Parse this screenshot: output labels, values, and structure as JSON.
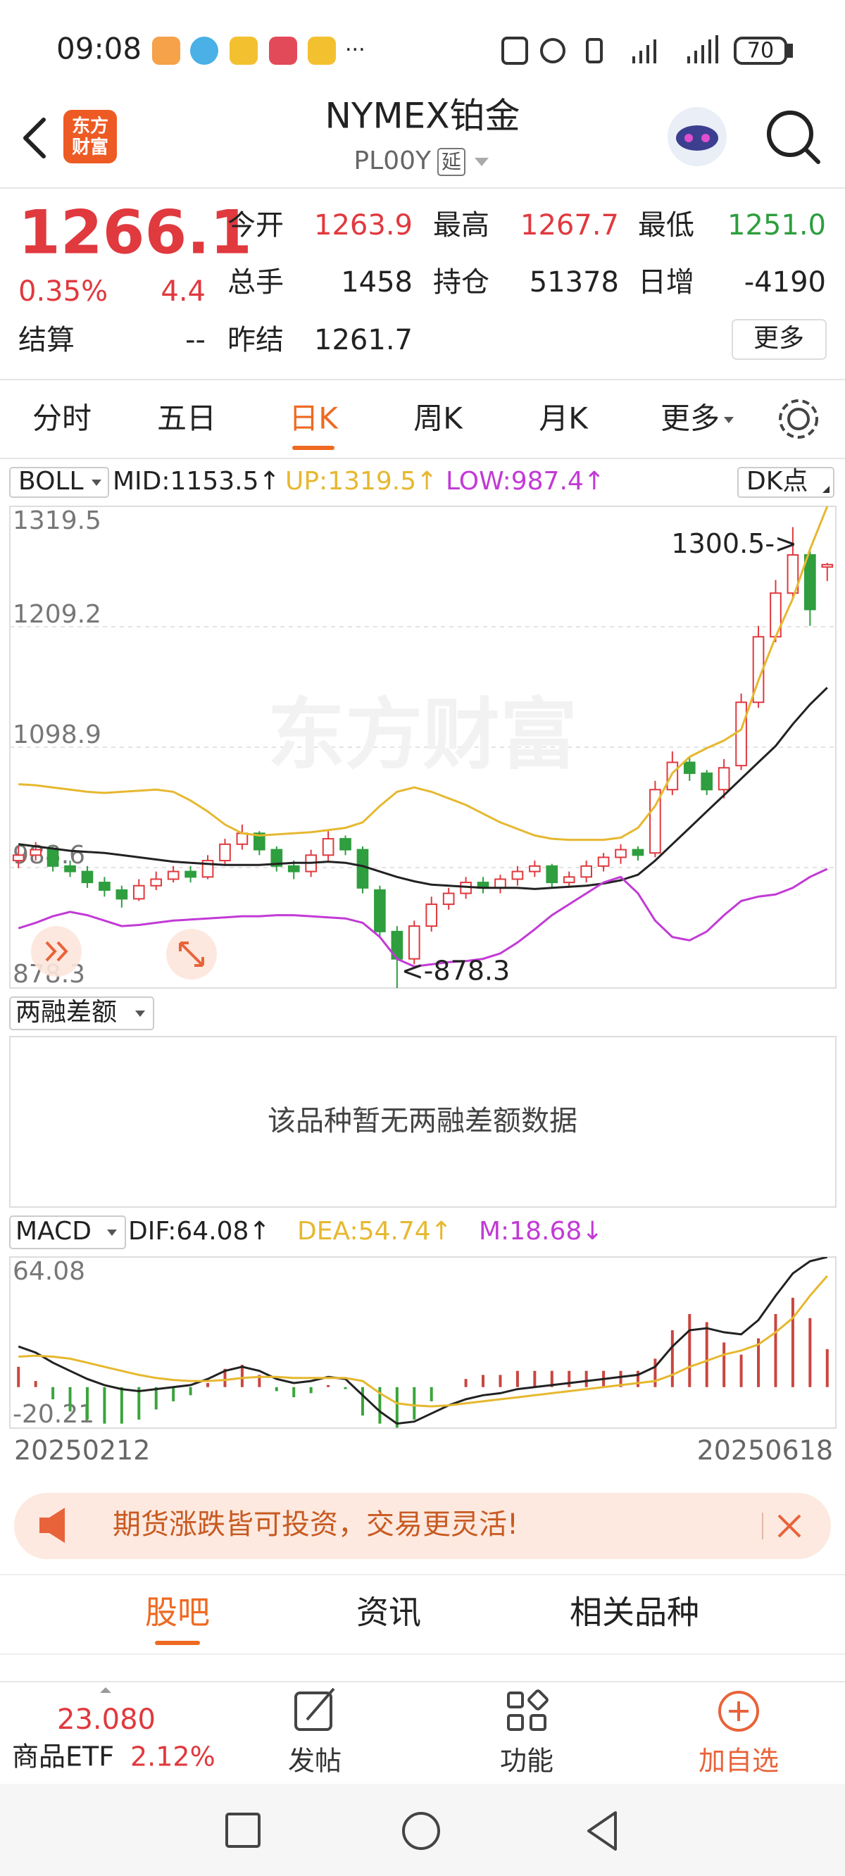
{
  "status_bar": {
    "time": "09:08",
    "battery": "70"
  },
  "header": {
    "logo": [
      "东方",
      "财富"
    ],
    "title": "NYMEX铂金",
    "code": "PL00Y",
    "badge": "延"
  },
  "quote": {
    "price": "1266.1",
    "change_pct": "0.35%",
    "change": "4.4",
    "color": "#e0393e",
    "settlement": {
      "label": "结算",
      "value": "--"
    },
    "fields": [
      {
        "label": "今开",
        "value": "1263.9",
        "color": "#e0393e"
      },
      {
        "label": "最高",
        "value": "1267.7",
        "color": "#e0393e"
      },
      {
        "label": "最低",
        "value": "1251.0",
        "color": "#2e9e3e"
      },
      {
        "label": "总手",
        "value": "1458",
        "color": "#222222"
      },
      {
        "label": "持仓",
        "value": "51378",
        "color": "#222222"
      },
      {
        "label": "日增",
        "value": "-4190",
        "color": "#222222"
      },
      {
        "label": "昨结",
        "value": "1261.7",
        "color": "#222222"
      }
    ],
    "more": "更多"
  },
  "tabs": [
    "分时",
    "五日",
    "日K",
    "周K",
    "月K",
    "更多"
  ],
  "active_tab": 2,
  "chart_data": [
    {
      "type": "candlestick",
      "indicator": "BOLL",
      "dk_button": "DK点",
      "watermark": "东方财富",
      "ylim": [
        878.3,
        1319.5
      ],
      "yticks": [
        878.3,
        988.6,
        1098.9,
        1209.2,
        1319.5
      ],
      "grid": true,
      "up_color": "#e0393e",
      "down_color": "#2e9e3e",
      "ohlc": {
        "open": [
          995,
          1000,
          1005,
          990,
          985,
          975,
          968,
          960,
          972,
          978,
          985,
          980,
          995,
          1010,
          1020,
          1005,
          990,
          985,
          1000,
          1015,
          1005,
          968,
          930,
          905,
          935,
          955,
          965,
          975,
          970,
          978,
          985,
          990,
          975,
          980,
          990,
          998,
          1005,
          1002,
          1060,
          1085,
          1075,
          1060,
          1082,
          1140,
          1200,
          1240,
          1275,
          1263.9
        ],
        "high": [
          1008,
          1012,
          1008,
          995,
          990,
          980,
          972,
          978,
          985,
          990,
          990,
          1000,
          1015,
          1028,
          1022,
          1008,
          995,
          1005,
          1022,
          1018,
          1008,
          972,
          935,
          940,
          962,
          970,
          980,
          980,
          982,
          990,
          995,
          992,
          985,
          995,
          1002,
          1010,
          1008,
          1068,
          1095,
          1090,
          1078,
          1088,
          1148,
          1210,
          1252,
          1300.5,
          1280,
          1267.7
        ],
        "low": [
          988,
          995,
          985,
          980,
          970,
          962,
          952,
          958,
          968,
          975,
          975,
          978,
          992,
          1005,
          1000,
          985,
          978,
          980,
          995,
          1000,
          965,
          925,
          878.3,
          900,
          930,
          950,
          960,
          965,
          965,
          972,
          980,
          970,
          970,
          975,
          985,
          992,
          995,
          998,
          1055,
          1068,
          1055,
          1052,
          1078,
          1135,
          1195,
          1235,
          1210,
          1251.0
        ],
        "close": [
          1000,
          1005,
          990,
          985,
          975,
          968,
          960,
          972,
          978,
          985,
          980,
          995,
          1010,
          1020,
          1005,
          990,
          985,
          1000,
          1015,
          1005,
          970,
          930,
          905,
          935,
          955,
          965,
          975,
          970,
          978,
          985,
          990,
          975,
          980,
          990,
          998,
          1005,
          1000,
          1060,
          1085,
          1075,
          1060,
          1080,
          1140,
          1200,
          1240,
          1275,
          1225,
          1266.1
        ]
      },
      "series": [
        {
          "name": "MID",
          "label": "MID:1153.5↑",
          "color": "#222222",
          "values": [
            1010,
            1008,
            1006,
            1004,
            1003,
            1002,
            1000,
            998,
            996,
            994,
            993,
            992,
            991,
            991,
            991,
            992,
            993,
            993,
            994,
            993,
            990,
            985,
            980,
            976,
            973,
            972,
            971,
            970,
            970,
            970,
            969,
            970,
            971,
            972,
            974,
            977,
            982,
            995,
            1010,
            1025,
            1040,
            1055,
            1070,
            1085,
            1100,
            1120,
            1138,
            1153.5
          ]
        },
        {
          "name": "UP",
          "label": "UP:1319.5↑",
          "color": "#e6b830",
          "values": [
            1065,
            1064,
            1062,
            1060,
            1058,
            1057,
            1058,
            1059,
            1060,
            1058,
            1050,
            1040,
            1028,
            1020,
            1018,
            1019,
            1020,
            1021,
            1023,
            1025,
            1030,
            1045,
            1058,
            1062,
            1058,
            1052,
            1046,
            1038,
            1030,
            1024,
            1018,
            1015,
            1014,
            1014,
            1014,
            1016,
            1025,
            1045,
            1075,
            1090,
            1098,
            1105,
            1115,
            1160,
            1200,
            1235,
            1280,
            1319.5
          ]
        },
        {
          "name": "LOW",
          "label": "LOW:987.4↑",
          "color": "#c23ad6",
          "values": [
            933,
            938,
            944,
            948,
            945,
            940,
            935,
            936,
            938,
            940,
            941,
            942,
            943,
            944,
            944,
            945,
            945,
            944,
            943,
            942,
            938,
            925,
            905,
            898,
            900,
            902,
            903,
            905,
            910,
            920,
            932,
            945,
            955,
            965,
            975,
            980,
            965,
            940,
            925,
            922,
            930,
            945,
            958,
            962,
            964,
            970,
            980,
            987.4
          ]
        }
      ],
      "annotations": [
        "1300.5->",
        "<-878.3"
      ]
    },
    {
      "type": "macd",
      "indicator": "MACD",
      "ylim": [
        -20.21,
        64.08
      ],
      "yticks": [
        64.08,
        -20.21
      ],
      "x_labels": [
        "20250212",
        "20250618"
      ],
      "series": [
        {
          "name": "DIF",
          "label": "DIF:64.08↑",
          "kind": "line",
          "color": "#222222",
          "values": [
            20,
            17,
            12,
            8,
            4,
            1,
            -1,
            -2,
            -1,
            0,
            1,
            4,
            8,
            10,
            8,
            4,
            2,
            3,
            5,
            4,
            -4,
            -12,
            -18,
            -17,
            -13,
            -9,
            -6,
            -4,
            -3,
            -1,
            0,
            1,
            2,
            3,
            4,
            5,
            6,
            10,
            20,
            28,
            29,
            27,
            26,
            33,
            45,
            56,
            62,
            64.08
          ]
        },
        {
          "name": "DEA",
          "label": "DEA:54.74↑",
          "kind": "line",
          "color": "#e6b830",
          "values": [
            15,
            15.5,
            15,
            14,
            12,
            10,
            8,
            6,
            4.5,
            3.5,
            3,
            3,
            3.5,
            4.5,
            5,
            5,
            4.5,
            4.5,
            4.5,
            4.5,
            3,
            -3,
            -8,
            -9,
            -9.5,
            -9,
            -8,
            -7,
            -6,
            -5,
            -4,
            -3,
            -2,
            -1,
            0,
            1,
            2,
            3,
            6,
            10,
            13,
            16,
            18,
            21,
            27,
            34,
            45,
            54.74
          ]
        },
        {
          "name": "M",
          "label": "M:18.68↓",
          "kind": "bar",
          "color": "#c23ad6",
          "up_color": "#c9463f",
          "down_color": "#3aa53a",
          "values": [
            10,
            3,
            -6,
            -12,
            -16,
            -18,
            -18,
            -16,
            -11,
            -7,
            -4,
            2,
            9,
            11,
            6,
            -2,
            -5,
            -3,
            1,
            -1,
            -14,
            -18,
            -20,
            -16,
            -7,
            0,
            4,
            6,
            6,
            8,
            8,
            8,
            8,
            8,
            8,
            8,
            8,
            14,
            28,
            36,
            32,
            22,
            16,
            24,
            36,
            44,
            34,
            18.68
          ]
        }
      ]
    }
  ],
  "margin_section": {
    "selector": "两融差额",
    "empty": "该品种暂无两融差额数据"
  },
  "banner": {
    "text": "期货涨跌皆可投资，交易更灵活!"
  },
  "section_tabs": [
    "股吧",
    "资讯",
    "相关品种"
  ],
  "active_section": 0,
  "bottom_bar": {
    "etf_price": "23.080",
    "etf_name": "商品ETF",
    "etf_change": "2.12%",
    "actions": [
      "发帖",
      "功能",
      "加自选"
    ]
  }
}
